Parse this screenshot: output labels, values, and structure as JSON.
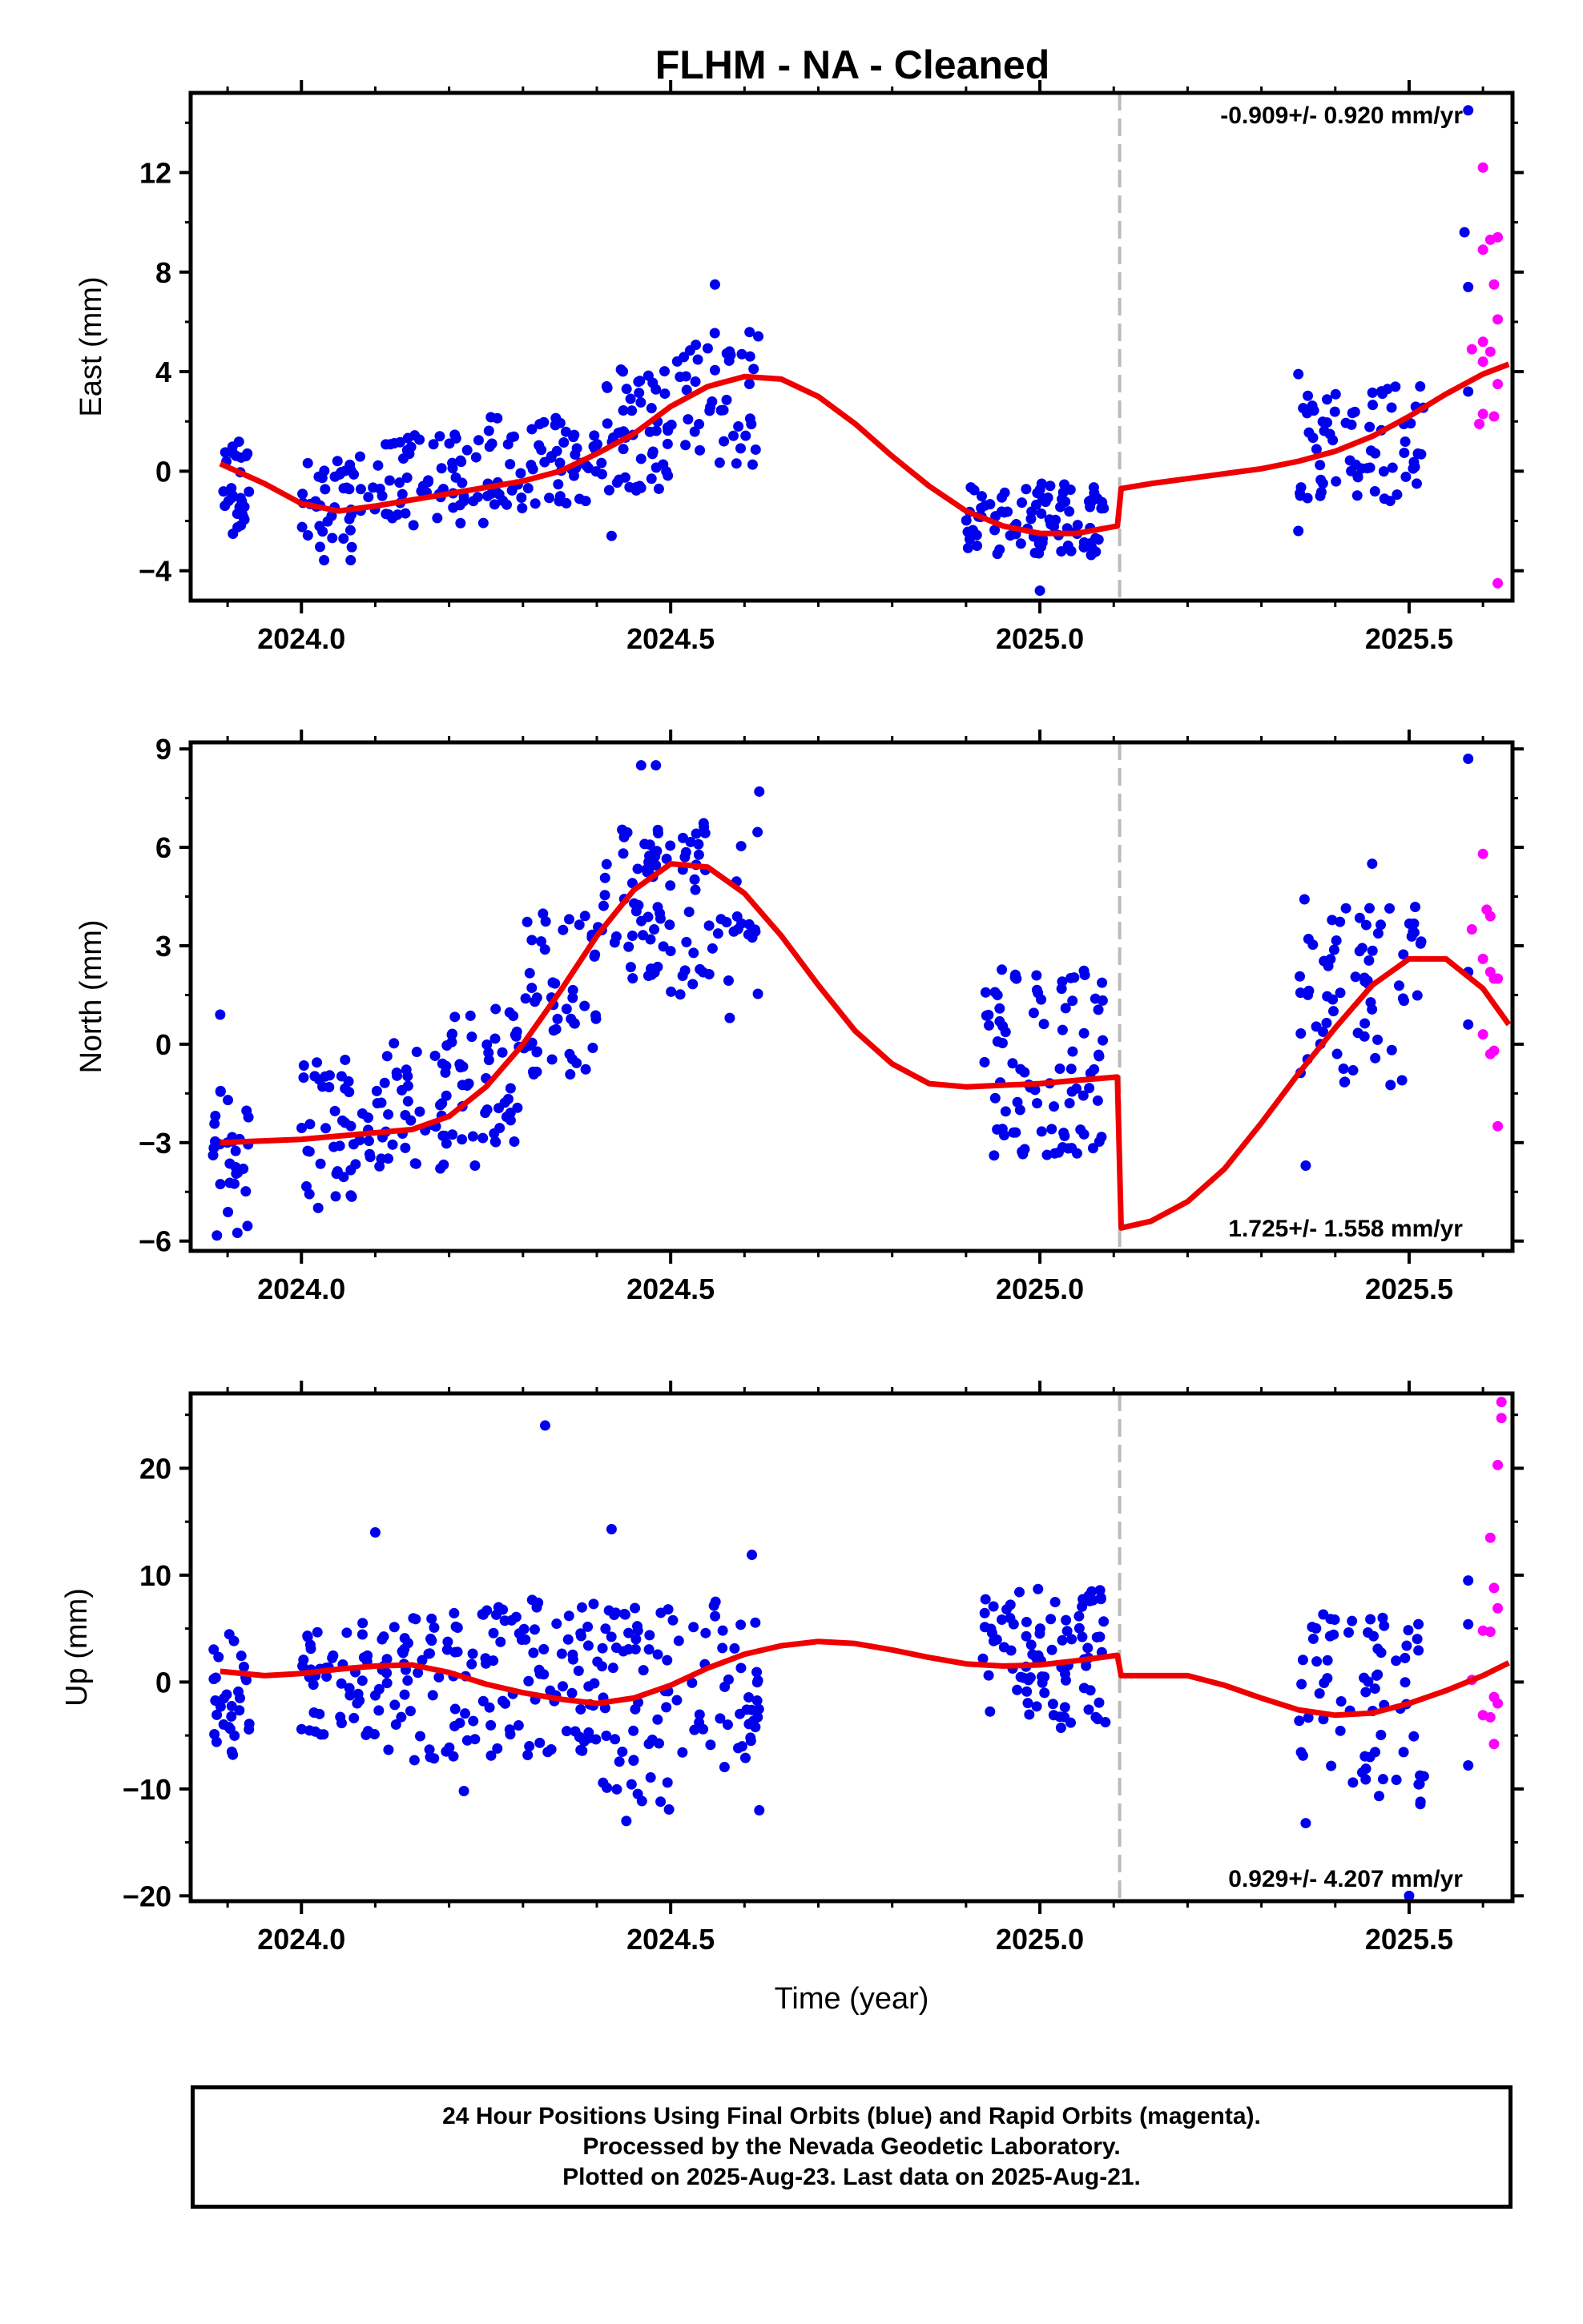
{
  "title": "FLHM  - NA - Cleaned",
  "xlabel": "Time (year)",
  "footer": {
    "line1": "24 Hour Positions Using Final Orbits (blue) and Rapid Orbits (magenta).",
    "line2": "Processed by the Nevada Geodetic Laboratory.",
    "line3": "Plotted on 2025-Aug-23. Last data on 2025-Aug-21."
  },
  "colors": {
    "final": "#0000ee",
    "rapid": "#ff00ff",
    "fit": "#ee0000",
    "break_line": "#bbbbbb"
  },
  "chart_data": [
    {
      "type": "scatter",
      "panel": "east",
      "ylabel": "East (mm)",
      "rate": "-0.909+/- 0.920 mm/yr",
      "xlim": [
        2023.85,
        2025.64
      ],
      "ylim": [
        -5.2,
        15.2
      ],
      "yticks": [
        -4,
        0,
        4,
        8,
        12
      ],
      "xticks": [
        "2024.0",
        "2024.5",
        "2025.0",
        "2025.5"
      ],
      "break_x": 2025.108,
      "fit": [
        [
          2023.89,
          0.3
        ],
        [
          2023.95,
          -0.5
        ],
        [
          2024.0,
          -1.3
        ],
        [
          2024.05,
          -1.6
        ],
        [
          2024.1,
          -1.4
        ],
        [
          2024.2,
          -0.9
        ],
        [
          2024.3,
          -0.4
        ],
        [
          2024.35,
          0.0
        ],
        [
          2024.4,
          0.7
        ],
        [
          2024.45,
          1.5
        ],
        [
          2024.5,
          2.6
        ],
        [
          2024.55,
          3.4
        ],
        [
          2024.6,
          3.8
        ],
        [
          2024.65,
          3.7
        ],
        [
          2024.7,
          3.0
        ],
        [
          2024.75,
          1.9
        ],
        [
          2024.8,
          0.6
        ],
        [
          2024.85,
          -0.6
        ],
        [
          2024.9,
          -1.6
        ],
        [
          2024.95,
          -2.2
        ],
        [
          2025.0,
          -2.5
        ],
        [
          2025.05,
          -2.5
        ],
        [
          2025.105,
          -2.2
        ],
        [
          2025.11,
          -0.7
        ],
        [
          2025.15,
          -0.5
        ],
        [
          2025.2,
          -0.3
        ],
        [
          2025.25,
          -0.1
        ],
        [
          2025.3,
          0.1
        ],
        [
          2025.35,
          0.4
        ],
        [
          2025.4,
          0.8
        ],
        [
          2025.45,
          1.4
        ],
        [
          2025.5,
          2.2
        ],
        [
          2025.55,
          3.1
        ],
        [
          2025.6,
          3.9
        ],
        [
          2025.635,
          4.3
        ]
      ],
      "final_ranges": [
        [
          2023.89,
          2023.93,
          -2.6,
          1.2,
          30
        ],
        [
          2024.0,
          2024.1,
          -3.6,
          0.6,
          45
        ],
        [
          2024.1,
          2024.25,
          -2.2,
          1.5,
          60
        ],
        [
          2024.25,
          2024.4,
          -1.5,
          2.2,
          65
        ],
        [
          2024.4,
          2024.5,
          -0.8,
          4.2,
          55
        ],
        [
          2024.5,
          2024.62,
          0.2,
          5.6,
          45
        ],
        [
          2024.9,
          2025.09,
          -3.4,
          -0.4,
          90
        ],
        [
          2025.35,
          2025.52,
          -1.2,
          3.6,
          70
        ]
      ],
      "final_extra": [
        [
          2024.56,
          7.5
        ],
        [
          2025.0,
          -4.8
        ],
        [
          2024.42,
          -2.6
        ],
        [
          2025.58,
          14.5
        ],
        [
          2025.575,
          9.6
        ],
        [
          2025.58,
          7.4
        ],
        [
          2025.58,
          3.2
        ],
        [
          2025.35,
          -2.4
        ],
        [
          2025.35,
          3.9
        ]
      ],
      "rapid": [
        [
          2025.6,
          12.2
        ],
        [
          2025.61,
          9.3
        ],
        [
          2025.62,
          9.4
        ],
        [
          2025.6,
          8.9
        ],
        [
          2025.615,
          7.5
        ],
        [
          2025.62,
          6.1
        ],
        [
          2025.6,
          5.2
        ],
        [
          2025.61,
          4.8
        ],
        [
          2025.585,
          4.9
        ],
        [
          2025.6,
          4.4
        ],
        [
          2025.62,
          3.5
        ],
        [
          2025.6,
          2.3
        ],
        [
          2025.615,
          2.2
        ],
        [
          2025.595,
          1.9
        ],
        [
          2025.62,
          -4.5
        ]
      ]
    },
    {
      "type": "scatter",
      "panel": "north",
      "ylabel": "North (mm)",
      "rate": "1.725+/- 1.558 mm/yr",
      "xlim": [
        2023.85,
        2025.64
      ],
      "ylim": [
        -6.3,
        9.2
      ],
      "yticks": [
        -6,
        -3,
        0,
        3,
        6,
        9
      ],
      "xticks": [
        "2024.0",
        "2024.5",
        "2025.0",
        "2025.5"
      ],
      "break_x": 2025.108,
      "fit": [
        [
          2023.89,
          -3.0
        ],
        [
          2024.0,
          -2.9
        ],
        [
          2024.1,
          -2.7
        ],
        [
          2024.15,
          -2.6
        ],
        [
          2024.2,
          -2.2
        ],
        [
          2024.25,
          -1.3
        ],
        [
          2024.3,
          0.0
        ],
        [
          2024.35,
          1.6
        ],
        [
          2024.4,
          3.3
        ],
        [
          2024.45,
          4.7
        ],
        [
          2024.5,
          5.5
        ],
        [
          2024.55,
          5.4
        ],
        [
          2024.6,
          4.6
        ],
        [
          2024.65,
          3.3
        ],
        [
          2024.7,
          1.8
        ],
        [
          2024.75,
          0.4
        ],
        [
          2024.8,
          -0.6
        ],
        [
          2024.85,
          -1.2
        ],
        [
          2024.9,
          -1.3
        ],
        [
          2025.0,
          -1.2
        ],
        [
          2025.05,
          -1.1
        ],
        [
          2025.105,
          -1.0
        ],
        [
          2025.11,
          -5.6
        ],
        [
          2025.15,
          -5.4
        ],
        [
          2025.2,
          -4.8
        ],
        [
          2025.25,
          -3.8
        ],
        [
          2025.3,
          -2.4
        ],
        [
          2025.35,
          -0.9
        ],
        [
          2025.4,
          0.5
        ],
        [
          2025.45,
          1.8
        ],
        [
          2025.5,
          2.6
        ],
        [
          2025.55,
          2.6
        ],
        [
          2025.6,
          1.7
        ],
        [
          2025.635,
          0.6
        ]
      ],
      "final_ranges": [
        [
          2023.88,
          2023.93,
          -6.0,
          -1.3,
          30
        ],
        [
          2024.0,
          2024.1,
          -5.0,
          -0.3,
          45
        ],
        [
          2024.1,
          2024.2,
          -4.0,
          0.2,
          45
        ],
        [
          2024.2,
          2024.3,
          -3.0,
          1.2,
          45
        ],
        [
          2024.3,
          2024.4,
          -1.0,
          4.0,
          50
        ],
        [
          2024.4,
          2024.5,
          2.0,
          7.0,
          55
        ],
        [
          2024.5,
          2024.62,
          1.5,
          7.2,
          45
        ],
        [
          2024.92,
          2025.09,
          -3.4,
          2.3,
          90
        ],
        [
          2025.35,
          2025.52,
          -1.4,
          4.5,
          70
        ]
      ],
      "final_extra": [
        [
          2023.89,
          0.9
        ],
        [
          2024.46,
          8.5
        ],
        [
          2024.48,
          8.5
        ],
        [
          2024.62,
          7.7
        ],
        [
          2024.58,
          0.8
        ],
        [
          2024.235,
          -3.7
        ],
        [
          2025.36,
          -3.7
        ],
        [
          2025.58,
          8.7
        ],
        [
          2025.58,
          0.6
        ],
        [
          2025.58,
          2.2
        ],
        [
          2025.45,
          5.5
        ]
      ],
      "rapid": [
        [
          2025.6,
          5.8
        ],
        [
          2025.605,
          4.1
        ],
        [
          2025.61,
          3.9
        ],
        [
          2025.585,
          3.5
        ],
        [
          2025.6,
          2.6
        ],
        [
          2025.61,
          2.2
        ],
        [
          2025.62,
          2.0
        ],
        [
          2025.615,
          2.0
        ],
        [
          2025.6,
          0.3
        ],
        [
          2025.615,
          -0.2
        ],
        [
          2025.61,
          -0.3
        ],
        [
          2025.62,
          -2.5
        ]
      ]
    },
    {
      "type": "scatter",
      "panel": "up",
      "ylabel": "Up (mm)",
      "rate": "0.929+/- 4.207 mm/yr",
      "xlim": [
        2023.85,
        2025.64
      ],
      "ylim": [
        -20.5,
        27
      ],
      "yticks": [
        -20,
        -10,
        0,
        10,
        20
      ],
      "xticks": [
        "2024.0",
        "2024.5",
        "2025.0",
        "2025.5"
      ],
      "break_x": 2025.108,
      "fit": [
        [
          2023.89,
          1.0
        ],
        [
          2023.95,
          0.6
        ],
        [
          2024.0,
          0.8
        ],
        [
          2024.05,
          1.2
        ],
        [
          2024.1,
          1.5
        ],
        [
          2024.15,
          1.6
        ],
        [
          2024.2,
          0.9
        ],
        [
          2024.25,
          -0.2
        ],
        [
          2024.3,
          -1.0
        ],
        [
          2024.35,
          -1.6
        ],
        [
          2024.4,
          -2.0
        ],
        [
          2024.45,
          -1.5
        ],
        [
          2024.5,
          -0.3
        ],
        [
          2024.55,
          1.3
        ],
        [
          2024.6,
          2.6
        ],
        [
          2024.65,
          3.4
        ],
        [
          2024.7,
          3.8
        ],
        [
          2024.75,
          3.6
        ],
        [
          2024.8,
          3.0
        ],
        [
          2024.85,
          2.3
        ],
        [
          2024.9,
          1.7
        ],
        [
          2024.95,
          1.5
        ],
        [
          2025.0,
          1.6
        ],
        [
          2025.05,
          2.0
        ],
        [
          2025.105,
          2.5
        ],
        [
          2025.11,
          0.6
        ],
        [
          2025.15,
          0.6
        ],
        [
          2025.2,
          0.6
        ],
        [
          2025.25,
          -0.3
        ],
        [
          2025.3,
          -1.5
        ],
        [
          2025.35,
          -2.6
        ],
        [
          2025.4,
          -3.1
        ],
        [
          2025.45,
          -2.9
        ],
        [
          2025.5,
          -2.0
        ],
        [
          2025.55,
          -0.8
        ],
        [
          2025.6,
          0.6
        ],
        [
          2025.635,
          1.8
        ]
      ],
      "final_ranges": [
        [
          2023.88,
          2023.93,
          -7.0,
          4.5,
          30
        ],
        [
          2024.0,
          2024.1,
          -6.0,
          6.0,
          45
        ],
        [
          2024.1,
          2024.2,
          -7.5,
          6.0,
          45
        ],
        [
          2024.2,
          2024.3,
          -7.0,
          7.0,
          45
        ],
        [
          2024.3,
          2024.4,
          -7.0,
          8.0,
          50
        ],
        [
          2024.4,
          2024.5,
          -12.0,
          7.0,
          55
        ],
        [
          2024.5,
          2024.62,
          -8.0,
          8.0,
          45
        ],
        [
          2024.92,
          2025.09,
          -4.5,
          9.0,
          90
        ],
        [
          2025.35,
          2025.52,
          -11.5,
          6.5,
          70
        ]
      ],
      "final_extra": [
        [
          2024.33,
          24.0
        ],
        [
          2024.1,
          14.0
        ],
        [
          2024.42,
          14.3
        ],
        [
          2024.61,
          11.9
        ],
        [
          2024.62,
          -12.0
        ],
        [
          2024.44,
          -13.0
        ],
        [
          2024.22,
          -10.2
        ],
        [
          2025.36,
          -13.2
        ],
        [
          2025.58,
          9.5
        ],
        [
          2025.58,
          5.4
        ],
        [
          2025.58,
          -7.8
        ],
        [
          2025.5,
          -20.0
        ]
      ],
      "rapid": [
        [
          2025.625,
          26.2
        ],
        [
          2025.625,
          24.7
        ],
        [
          2025.62,
          20.3
        ],
        [
          2025.61,
          13.5
        ],
        [
          2025.615,
          8.8
        ],
        [
          2025.62,
          6.9
        ],
        [
          2025.6,
          4.8
        ],
        [
          2025.61,
          4.7
        ],
        [
          2025.585,
          0.2
        ],
        [
          2025.615,
          -1.4
        ],
        [
          2025.62,
          -2.0
        ],
        [
          2025.6,
          -3.1
        ],
        [
          2025.61,
          -3.3
        ],
        [
          2025.615,
          -5.8
        ]
      ]
    }
  ]
}
